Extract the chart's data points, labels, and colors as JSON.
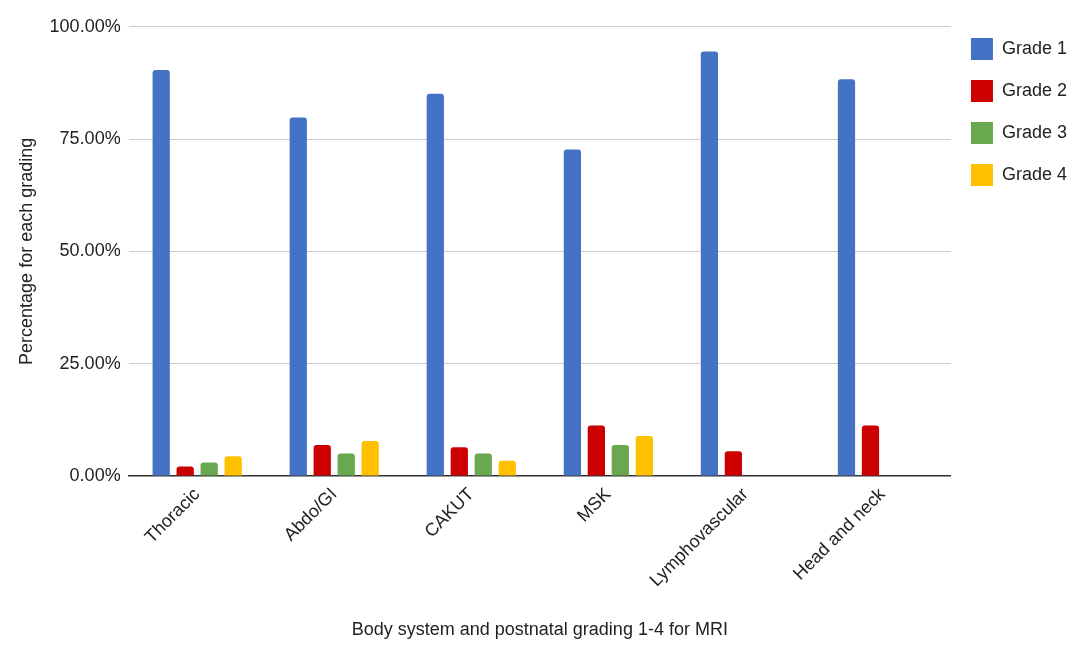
{
  "chart_data": {
    "type": "bar",
    "categories": [
      "Thoracic",
      "Abdo/GI",
      "CAKUT",
      "MSK",
      "Lymphovascular",
      "Head and neck"
    ],
    "series": [
      {
        "name": "Grade 1",
        "color": "#4472c4",
        "values": [
          90.4,
          79.8,
          85.1,
          72.7,
          94.5,
          88.3
        ]
      },
      {
        "name": "Grade 2",
        "color": "#cc0000",
        "values": [
          2.1,
          6.9,
          6.4,
          11.2,
          5.5,
          11.2
        ]
      },
      {
        "name": "Grade 3",
        "color": "#6aa84f",
        "values": [
          3.0,
          5.0,
          5.0,
          6.9,
          0,
          0
        ]
      },
      {
        "name": "Grade 4",
        "color": "#ffc000",
        "values": [
          4.4,
          7.8,
          3.4,
          8.9,
          0,
          0
        ]
      }
    ],
    "xlabel": "Body system and postnatal grading 1-4 for MRI",
    "ylabel": "Percentage for each grading",
    "ylim": [
      0,
      100
    ],
    "yticks": [
      {
        "value": 0,
        "label": "0.00%"
      },
      {
        "value": 25,
        "label": "25.00%"
      },
      {
        "value": 50,
        "label": "50.00%"
      },
      {
        "value": 75,
        "label": "75.00%"
      },
      {
        "value": 100,
        "label": "100.00%"
      }
    ],
    "grid": "y",
    "legend": "top right"
  }
}
